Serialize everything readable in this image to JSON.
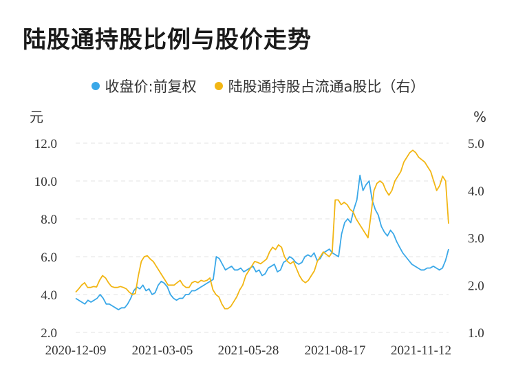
{
  "chart_data": {
    "type": "line",
    "title": "陆股通持股比例与股价走势",
    "legend": {
      "placement": "top-center"
    },
    "grid": true,
    "y_left": {
      "unit": "元",
      "ticks": [
        "12.0",
        "10.0",
        "8.0",
        "6.0",
        "4.0",
        "2.0"
      ],
      "range": [
        2.0,
        12.0
      ]
    },
    "y_right": {
      "unit": "%",
      "ticks": [
        "5.0",
        "4.0",
        "3.0",
        "2.0",
        "1.0"
      ],
      "range": [
        1.0,
        5.0
      ]
    },
    "x_ticks": [
      "2020-12-09",
      "2021-03-05",
      "2021-05-28",
      "2021-08-17",
      "2021-11-12"
    ],
    "series": [
      {
        "name": "收盘价:前复权",
        "axis": "left",
        "color": "#3aa8e8",
        "values": [
          3.8,
          3.7,
          3.6,
          3.5,
          3.7,
          3.6,
          3.7,
          3.8,
          4.0,
          3.8,
          3.5,
          3.5,
          3.4,
          3.3,
          3.2,
          3.3,
          3.3,
          3.5,
          3.8,
          4.2,
          4.4,
          4.3,
          4.5,
          4.2,
          4.3,
          4.0,
          4.1,
          4.5,
          4.7,
          4.6,
          4.4,
          4.0,
          3.8,
          3.7,
          3.8,
          3.8,
          4.0,
          4.0,
          4.2,
          4.2,
          4.3,
          4.4,
          4.5,
          4.6,
          4.7,
          4.8,
          6.0,
          5.9,
          5.6,
          5.3,
          5.4,
          5.5,
          5.3,
          5.3,
          5.4,
          5.2,
          5.3,
          5.4,
          5.5,
          5.2,
          5.3,
          5.0,
          5.1,
          5.4,
          5.5,
          5.6,
          5.2,
          5.3,
          5.7,
          5.8,
          6.0,
          5.9,
          5.7,
          5.6,
          5.7,
          6.0,
          6.1,
          6.0,
          6.2,
          5.8,
          5.9,
          6.2,
          6.3,
          6.4,
          6.2,
          6.1,
          6.0,
          7.2,
          7.8,
          8.0,
          7.8,
          8.5,
          9.0,
          10.3,
          9.5,
          9.8,
          10.0,
          9.0,
          8.5,
          8.2,
          7.6,
          7.3,
          7.1,
          7.4,
          7.2,
          6.8,
          6.5,
          6.2,
          6.0,
          5.8,
          5.6,
          5.5,
          5.4,
          5.3,
          5.3,
          5.4,
          5.4,
          5.5,
          5.4,
          5.3,
          5.4,
          5.8,
          6.4
        ]
      },
      {
        "name": "陆股通持股占流通a股比（右）",
        "axis": "right",
        "color": "#f2b614",
        "values": [
          1.85,
          1.92,
          2.0,
          2.05,
          1.95,
          1.95,
          1.97,
          1.96,
          2.1,
          2.2,
          2.15,
          2.05,
          1.97,
          1.95,
          1.95,
          1.97,
          1.95,
          1.92,
          1.85,
          1.8,
          1.82,
          2.2,
          2.5,
          2.6,
          2.62,
          2.55,
          2.5,
          2.4,
          2.3,
          2.2,
          2.1,
          2.0,
          2.0,
          2.0,
          2.05,
          2.1,
          2.0,
          1.95,
          1.95,
          2.05,
          2.08,
          2.05,
          2.1,
          2.08,
          2.1,
          2.15,
          1.9,
          1.8,
          1.75,
          1.6,
          1.5,
          1.5,
          1.55,
          1.65,
          1.75,
          1.9,
          2.0,
          2.2,
          2.3,
          2.4,
          2.5,
          2.48,
          2.45,
          2.5,
          2.55,
          2.7,
          2.8,
          2.75,
          2.85,
          2.8,
          2.6,
          2.5,
          2.45,
          2.5,
          2.35,
          2.2,
          2.1,
          2.05,
          2.1,
          2.2,
          2.3,
          2.5,
          2.6,
          2.7,
          2.65,
          2.6,
          2.7,
          3.8,
          3.8,
          3.7,
          3.75,
          3.7,
          3.6,
          3.55,
          3.4,
          3.3,
          3.2,
          3.1,
          3.0,
          3.5,
          4.0,
          4.15,
          4.2,
          4.15,
          4.0,
          3.9,
          4.0,
          4.2,
          4.3,
          4.4,
          4.6,
          4.7,
          4.8,
          4.85,
          4.8,
          4.7,
          4.65,
          4.6,
          4.5,
          4.4,
          4.2,
          4.0,
          4.1,
          4.3,
          4.2,
          3.3
        ]
      }
    ]
  }
}
